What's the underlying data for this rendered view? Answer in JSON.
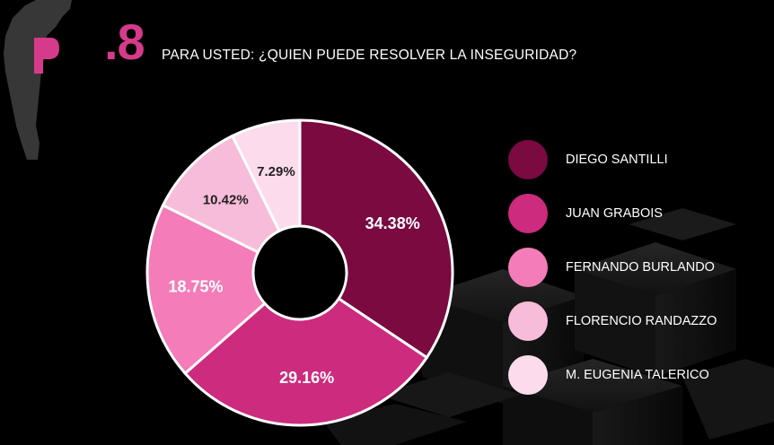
{
  "header": {
    "question_number": ".8",
    "question_text": "PARA USTED:  ¿QUIEN PUEDE RESOLVER LA INSEGURIDAD?"
  },
  "colors": {
    "accent": "#d63a8a",
    "background": "#000000",
    "text": "#ffffff"
  },
  "chart_data": {
    "type": "pie",
    "donut": true,
    "categories": [
      "DIEGO SANTILLI",
      "JUAN GRABOIS",
      "FERNANDO BURLANDO",
      "FLORENCIO RANDAZZO",
      "M. EUGENIA TALERICO"
    ],
    "values": [
      34.38,
      29.16,
      18.75,
      10.42,
      7.29
    ],
    "labels": [
      "34.38%",
      "29.16%",
      "18.75%",
      "10.42%",
      "7.29%"
    ],
    "colors": [
      "#7a0a40",
      "#cc2b7e",
      "#f47cb8",
      "#f6bcd9",
      "#fcdcec"
    ],
    "label_colors": [
      "#ffffff",
      "#ffffff",
      "#ffffff",
      "#222222",
      "#222222"
    ],
    "legend_position": "right"
  }
}
